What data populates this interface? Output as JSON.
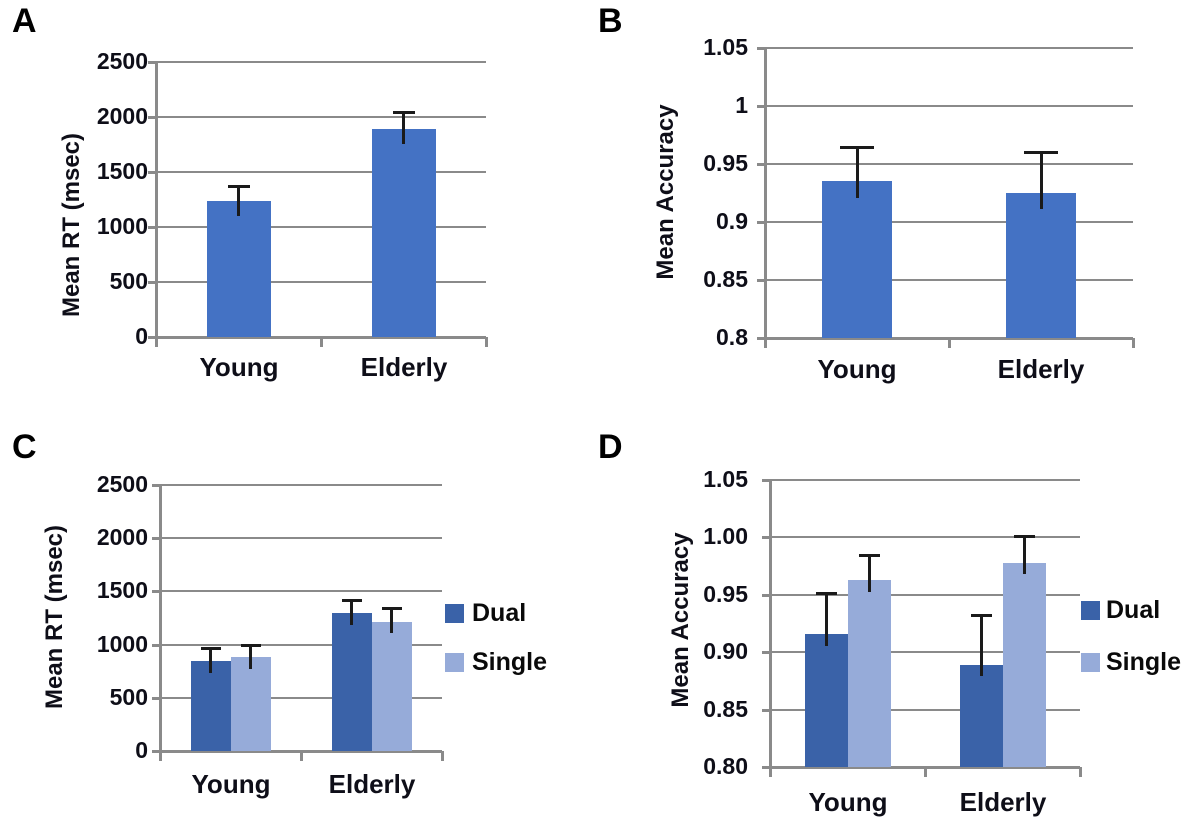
{
  "figure": {
    "background": "#ffffff",
    "colors": {
      "series_default": "#4472C4",
      "dual": "#3A62A8",
      "single": "#96ABD9",
      "gridline": "#8a8a8a",
      "axis": "#7f7f7f",
      "text": "#0e0e18",
      "error_bar": "#1a1a1a"
    },
    "panels": [
      {
        "label": "A",
        "y_axis": {
          "title": "Mean RT (msec)",
          "min": 0,
          "max": 2500,
          "step": 500,
          "tick_labels": [
            "2500",
            "2000",
            "1500",
            "1000",
            "500",
            "0"
          ]
        },
        "categories": [
          "Young",
          "Elderly"
        ],
        "series": [
          {
            "name": "Mean RT",
            "color_key": "series_default",
            "values": [
              1235,
              1895
            ],
            "error_tops": [
              1370,
              2050
            ]
          }
        ],
        "legend": null
      },
      {
        "label": "B",
        "y_axis": {
          "title": "Mean Accuracy",
          "min": 0.8,
          "max": 1.05,
          "step": 0.05,
          "tick_labels": [
            "1.05",
            "1",
            "0.95",
            "0.9",
            "0.85",
            "0.8"
          ]
        },
        "categories": [
          "Young",
          "Elderly"
        ],
        "series": [
          {
            "name": "Mean Accuracy",
            "color_key": "series_default",
            "values": [
              0.935,
              0.925
            ],
            "error_tops": [
              0.965,
              0.96
            ]
          }
        ],
        "legend": null
      },
      {
        "label": "C",
        "y_axis": {
          "title": "Mean RT (msec)",
          "min": 0,
          "max": 2500,
          "step": 500,
          "tick_labels": [
            "2500",
            "2000",
            "1500",
            "1000",
            "500",
            "0"
          ]
        },
        "categories": [
          "Young",
          "Elderly"
        ],
        "series": [
          {
            "name": "Dual",
            "color_key": "dual",
            "values": [
              845,
              1300
            ],
            "error_tops": [
              970,
              1420
            ]
          },
          {
            "name": "Single",
            "color_key": "single",
            "values": [
              885,
              1215
            ],
            "error_tops": [
              1000,
              1340
            ]
          }
        ],
        "legend": {
          "items": [
            "Dual",
            "Single"
          ]
        }
      },
      {
        "label": "D",
        "y_axis": {
          "title": "Mean Accuracy",
          "min": 0.8,
          "max": 1.05,
          "step": 0.05,
          "tick_labels": [
            "1.05",
            "1.00",
            "0.95",
            "0.90",
            "0.85",
            "0.80"
          ]
        },
        "categories": [
          "Young",
          "Elderly"
        ],
        "series": [
          {
            "name": "Dual",
            "color_key": "dual",
            "values": [
              0.916,
              0.889
            ],
            "error_tops": [
              0.952,
              0.932
            ]
          },
          {
            "name": "Single",
            "color_key": "single",
            "values": [
              0.963,
              0.978
            ],
            "error_tops": [
              0.985,
              1.001
            ]
          }
        ],
        "legend": {
          "items": [
            "Dual",
            "Single"
          ]
        }
      }
    ],
    "chart_data": [
      {
        "type": "bar",
        "panel": "A",
        "title": "",
        "xlabel": "",
        "ylabel": "Mean RT (msec)",
        "categories": [
          "Young",
          "Elderly"
        ],
        "values": [
          1235,
          1895
        ],
        "error_plus": [
          135,
          155
        ],
        "ylim": [
          0,
          2500
        ],
        "grid": true,
        "legend_position": "none"
      },
      {
        "type": "bar",
        "panel": "B",
        "title": "",
        "xlabel": "",
        "ylabel": "Mean Accuracy",
        "categories": [
          "Young",
          "Elderly"
        ],
        "values": [
          0.935,
          0.925
        ],
        "error_plus": [
          0.03,
          0.035
        ],
        "ylim": [
          0.8,
          1.05
        ],
        "grid": true,
        "legend_position": "none"
      },
      {
        "type": "bar",
        "panel": "C",
        "title": "",
        "xlabel": "",
        "ylabel": "Mean RT (msec)",
        "categories": [
          "Young",
          "Elderly"
        ],
        "series": [
          {
            "name": "Dual",
            "values": [
              845,
              1300
            ],
            "error_plus": [
              125,
              120
            ]
          },
          {
            "name": "Single",
            "values": [
              885,
              1215
            ],
            "error_plus": [
              115,
              125
            ]
          }
        ],
        "ylim": [
          0,
          2500
        ],
        "grid": true,
        "legend_position": "right"
      },
      {
        "type": "bar",
        "panel": "D",
        "title": "",
        "xlabel": "",
        "ylabel": "Mean Accuracy",
        "categories": [
          "Young",
          "Elderly"
        ],
        "series": [
          {
            "name": "Dual",
            "values": [
              0.916,
              0.889
            ],
            "error_plus": [
              0.036,
              0.043
            ]
          },
          {
            "name": "Single",
            "values": [
              0.963,
              0.978
            ],
            "error_plus": [
              0.022,
              0.023
            ]
          }
        ],
        "ylim": [
          0.8,
          1.05
        ],
        "grid": true,
        "legend_position": "right"
      }
    ]
  }
}
